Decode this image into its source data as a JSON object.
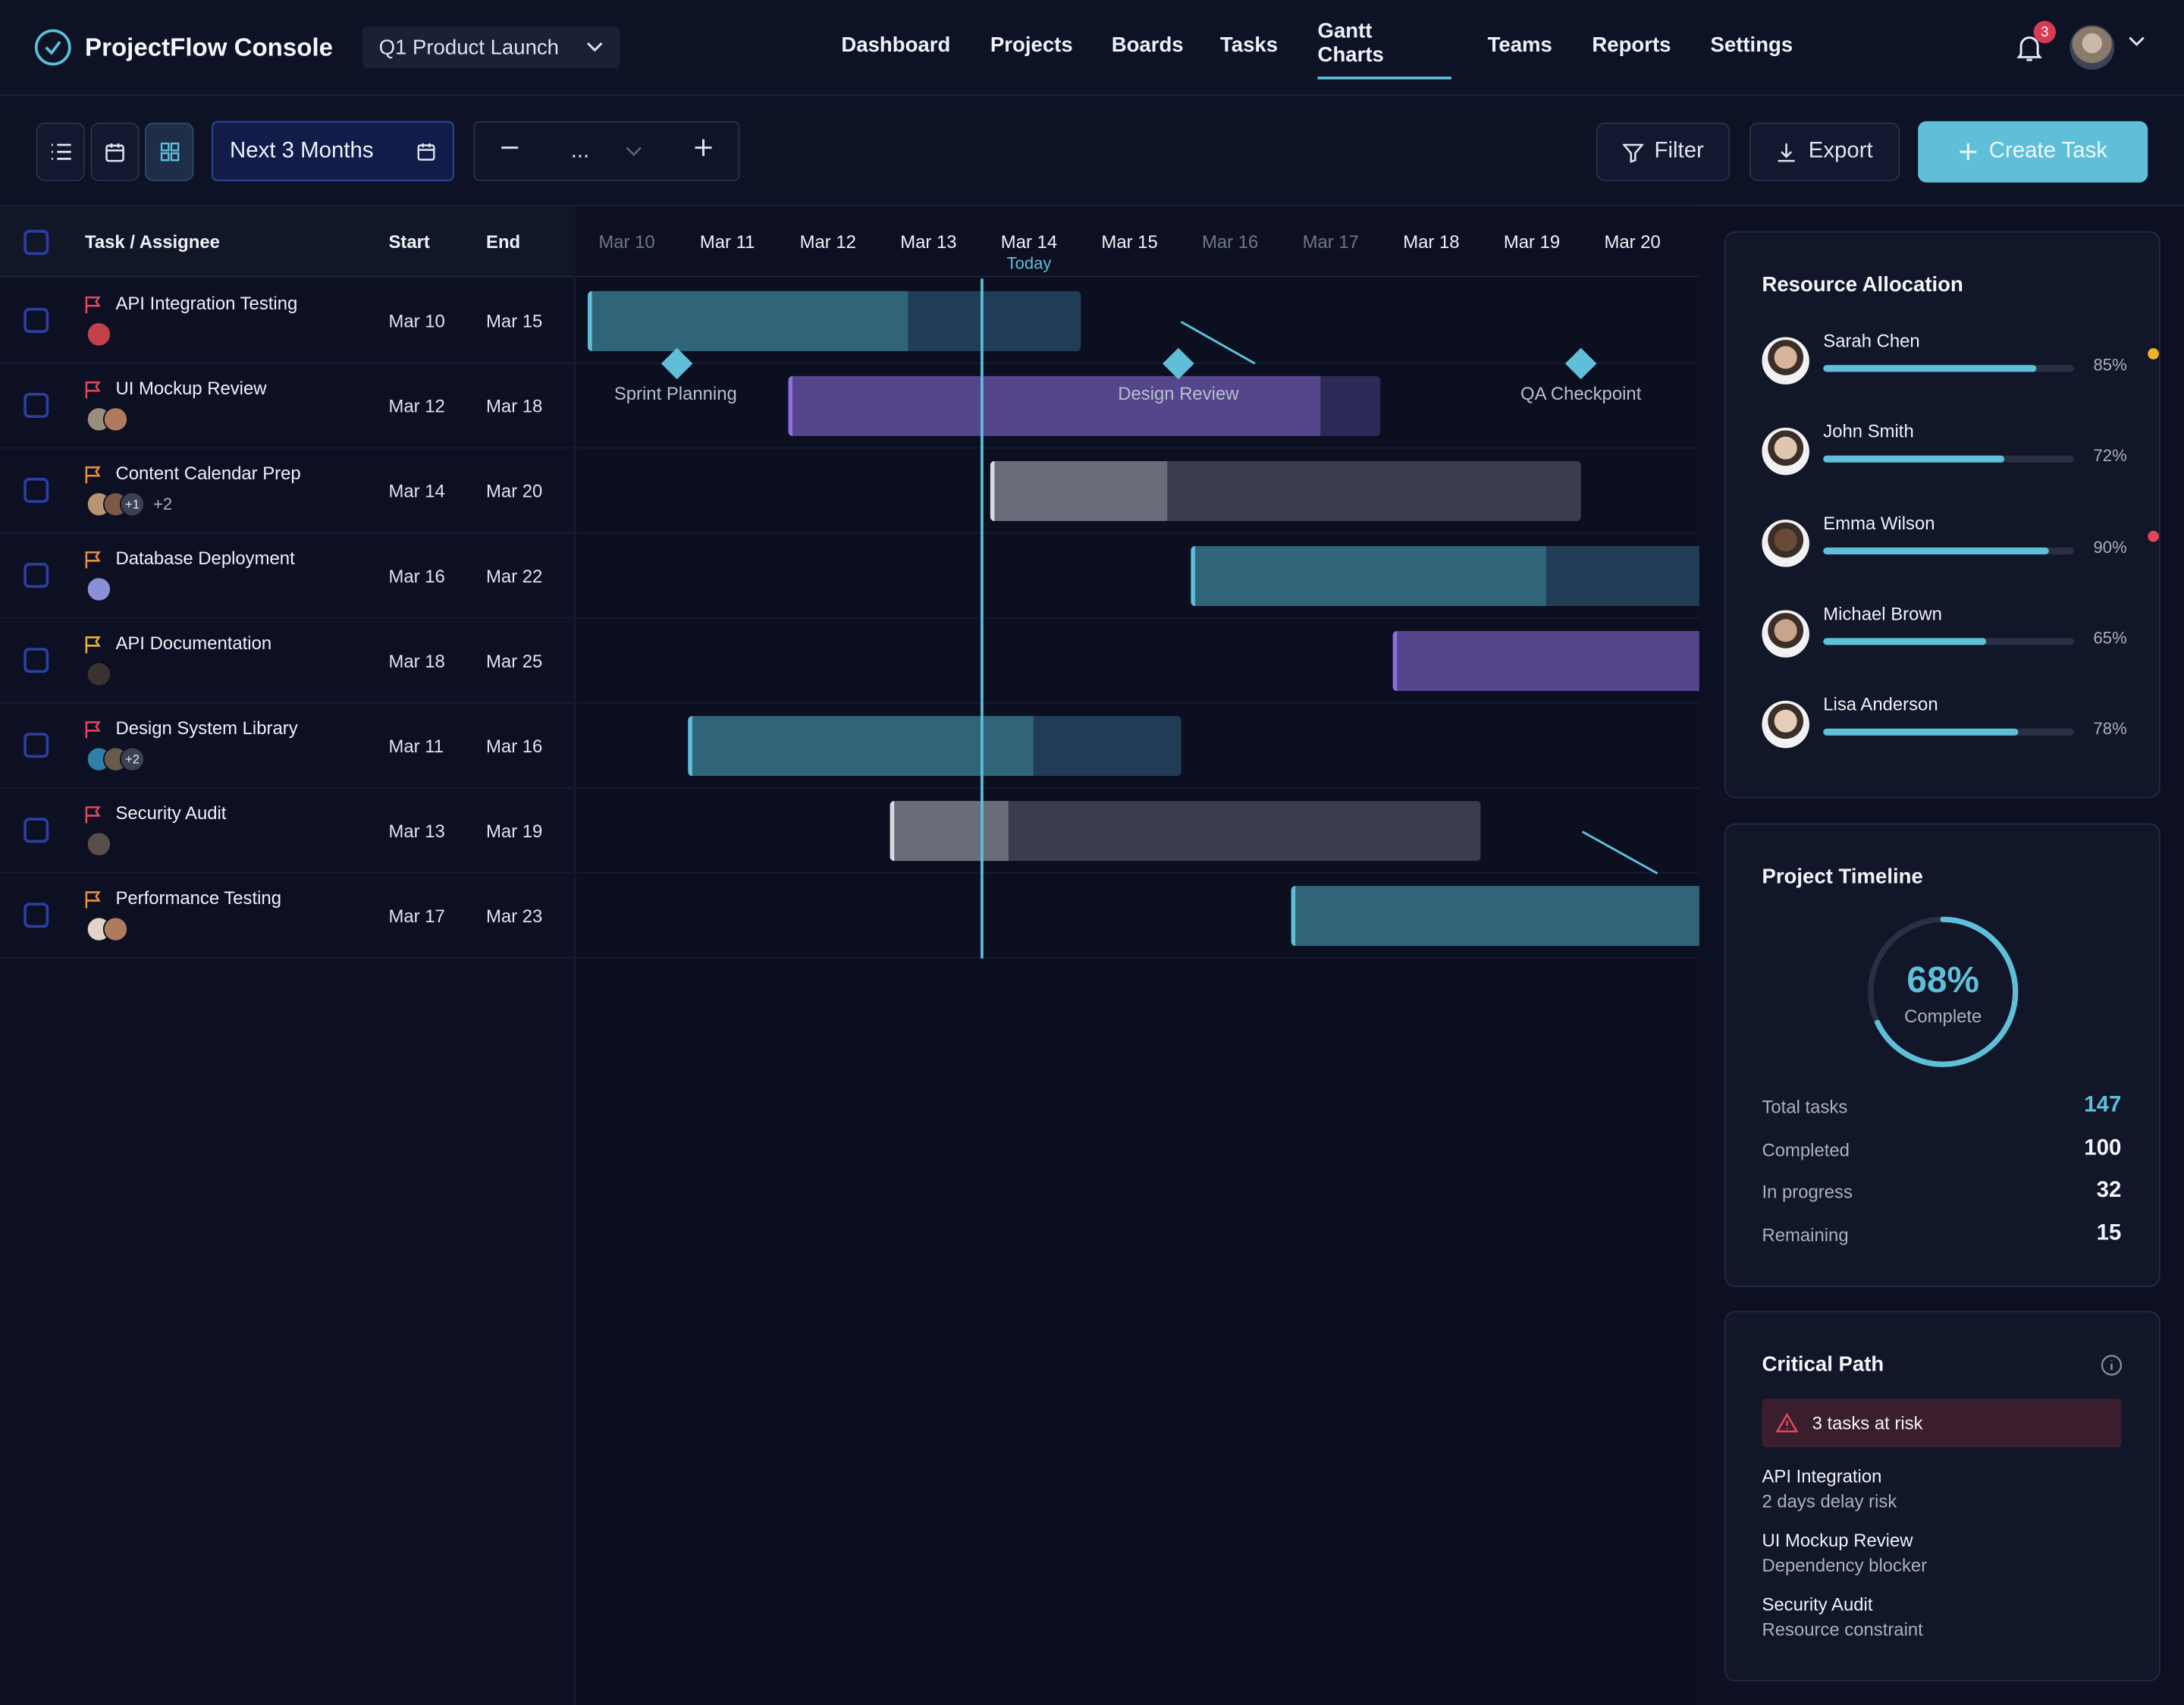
{
  "app": {
    "title": "ProjectFlow Console",
    "project": "Q1 Product Launch",
    "notifications": "3"
  },
  "nav": [
    {
      "label": "Dashboard"
    },
    {
      "label": "Projects"
    },
    {
      "label": "Boards"
    },
    {
      "label": "Tasks"
    },
    {
      "label": "Gantt Charts"
    },
    {
      "label": "Teams"
    },
    {
      "label": "Reports"
    },
    {
      "label": "Settings"
    }
  ],
  "toolbar": {
    "range": "Next 3 Months",
    "zoom": "...",
    "filter": "Filter",
    "export": "Export",
    "create": "Create Task"
  },
  "table": {
    "headers": {
      "task": "Task / Assignee",
      "start": "Start",
      "end": "End"
    },
    "rows": [
      {
        "name": "API Integration Testing",
        "start": "Mar 10",
        "end": "Mar 15",
        "flag": "#e0475c",
        "avatars": [
          "#c2404a"
        ],
        "more": "",
        "extra": "",
        "progress": 0.65,
        "color": "teal"
      },
      {
        "name": "UI Mockup Review",
        "start": "Mar 12",
        "end": "Mar 18",
        "flag": "#e0475c",
        "avatars": [
          "#9a8d7e",
          "#b07a5c"
        ],
        "more": "",
        "extra": "",
        "progress": 0.9,
        "color": "purple"
      },
      {
        "name": "Content Calendar Prep",
        "start": "Mar 14",
        "end": "Mar 20",
        "flag": "#e8903a",
        "avatars": [
          "#b89474",
          "#7a5a44"
        ],
        "more": "+1",
        "extra": "+2",
        "progress": 0.3,
        "color": "gray"
      },
      {
        "name": "Database Deployment",
        "start": "Mar 16",
        "end": "Mar 22",
        "flag": "#e8903a",
        "avatars": [
          "#8a90d8"
        ],
        "more": "",
        "extra": "",
        "progress": 0.6,
        "color": "teal"
      },
      {
        "name": "API Documentation",
        "start": "Mar 18",
        "end": "Mar 25",
        "flag": "#e8b43a",
        "avatars": [
          "#3a3230"
        ],
        "more": "",
        "extra": "",
        "progress": 1,
        "color": "purple"
      },
      {
        "name": "Design System Library",
        "start": "Mar 11",
        "end": "Mar 16",
        "flag": "#e0475c",
        "avatars": [
          "#2f7fa8",
          "#6a5a4c"
        ],
        "more": "+2",
        "extra": "",
        "progress": 0.7,
        "color": "teal"
      },
      {
        "name": "Security Audit",
        "start": "Mar 13",
        "end": "Mar 19",
        "flag": "#e0475c",
        "avatars": [
          "#5a4e4a"
        ],
        "more": "",
        "extra": "",
        "progress": 0.2,
        "color": "gray"
      },
      {
        "name": "Performance Testing",
        "start": "Mar 17",
        "end": "Mar 23",
        "flag": "#e8903a",
        "avatars": [
          "#e0d4c8",
          "#b07a5c"
        ],
        "more": "",
        "extra": "",
        "progress": 0.92,
        "color": "teal"
      }
    ]
  },
  "timeline": {
    "dates": [
      "Mar 10",
      "Mar 11",
      "Mar 12",
      "Mar 13",
      "Mar 14",
      "Mar 15",
      "Mar 16",
      "Mar 17",
      "Mar 18",
      "Mar 19",
      "Mar 20"
    ],
    "today_label": "Today",
    "milestones": [
      "Sprint Planning",
      "Design Review",
      "QA Checkpoint"
    ]
  },
  "resources": {
    "title": "Resource Allocation",
    "people": [
      {
        "name": "Sarah Chen",
        "pct": "85%",
        "value": 0.85,
        "dot": "#f0b429"
      },
      {
        "name": "John Smith",
        "pct": "72%",
        "value": 0.72,
        "dot": ""
      },
      {
        "name": "Emma Wilson",
        "pct": "90%",
        "value": 0.9,
        "dot": "#e0475c"
      },
      {
        "name": "Michael Brown",
        "pct": "65%",
        "value": 0.65,
        "dot": ""
      },
      {
        "name": "Lisa Anderson",
        "pct": "78%",
        "value": 0.78,
        "dot": ""
      }
    ]
  },
  "timeline_panel": {
    "title": "Project Timeline",
    "percent": "68%",
    "percent_value": 0.68,
    "complete_label": "Complete",
    "stats": [
      {
        "label": "Total tasks",
        "value": "147",
        "accent": true
      },
      {
        "label": "Completed",
        "value": "100",
        "accent": false
      },
      {
        "label": "In progress",
        "value": "32",
        "accent": false
      },
      {
        "label": "Remaining",
        "value": "15",
        "accent": false
      }
    ]
  },
  "critical": {
    "title": "Critical Path",
    "risk": "3 tasks at risk",
    "items": [
      {
        "title": "API Integration",
        "sub": "2 days delay risk"
      },
      {
        "title": "UI Mockup Review",
        "sub": "Dependency blocker"
      },
      {
        "title": "Security Audit",
        "sub": "Resource constraint"
      }
    ]
  },
  "colors": {
    "accent": "#5fbfd9",
    "background": "#0c1022",
    "purple": "#55458a",
    "teal": "#306478",
    "gray": "#5c5d6c"
  }
}
